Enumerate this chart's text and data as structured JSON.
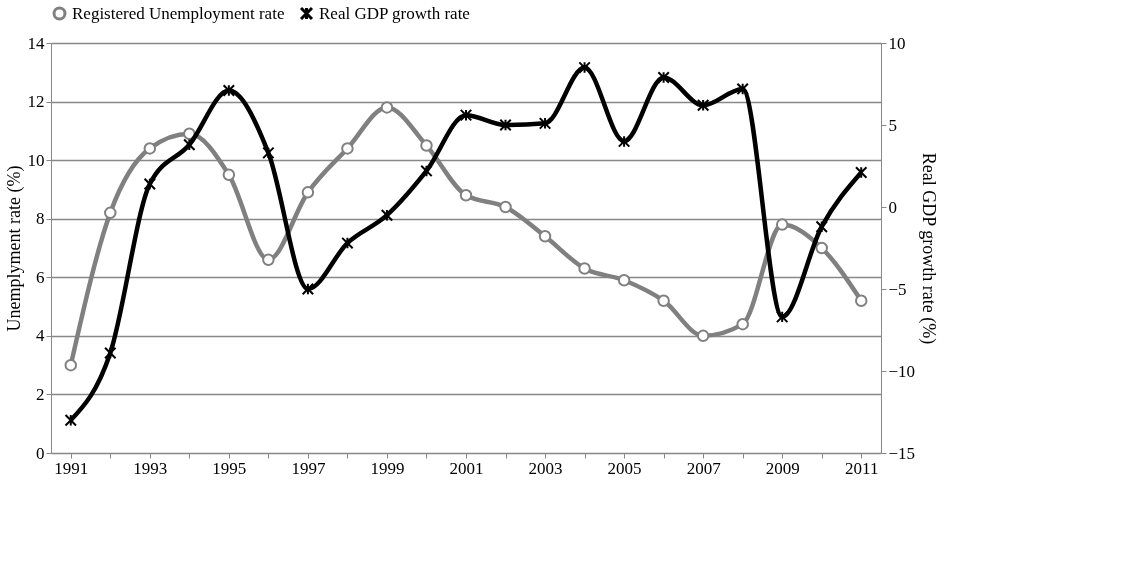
{
  "chart_data": {
    "type": "line",
    "ylabel": "Unemplyment rate (%)",
    "y2label": "Real GDP growth rate (%)",
    "categories": [
      "1991",
      null,
      "1993",
      null,
      "1995",
      null,
      "1997",
      null,
      "1999",
      null,
      "2001",
      null,
      "2003",
      null,
      "2005",
      null,
      "2007",
      null,
      "2009",
      null,
      "2011"
    ],
    "series": [
      {
        "name": "Registered Unemployment rate",
        "color": "#808080",
        "marker": "circle",
        "values": [
          3.0,
          8.2,
          10.4,
          10.9,
          9.5,
          6.6,
          8.9,
          10.4,
          11.8,
          10.5,
          8.8,
          8.4,
          7.4,
          6.3,
          5.9,
          5.2,
          4.0,
          4.4,
          7.8,
          7.0,
          5.2
        ]
      },
      {
        "name": "Real GDP growth rate",
        "color": "#000000",
        "marker": "cross",
        "axis": "y2",
        "values": [
          -13.0,
          -8.9,
          1.4,
          3.8,
          7.1,
          3.3,
          -5.0,
          -2.2,
          -0.5,
          2.2,
          5.6,
          5.0,
          5.1,
          8.5,
          4.0,
          7.9,
          6.2,
          7.2,
          -6.7,
          -1.2,
          2.1
        ]
      }
    ],
    "ylim": [
      0,
      14
    ],
    "yticks": [
      0,
      2,
      4,
      6,
      8,
      10,
      12,
      14
    ],
    "y2lim": [
      -15,
      10
    ],
    "y2ticks": [
      -15,
      -10,
      -5,
      0,
      5,
      10
    ],
    "grid": "y",
    "legend": "top"
  }
}
